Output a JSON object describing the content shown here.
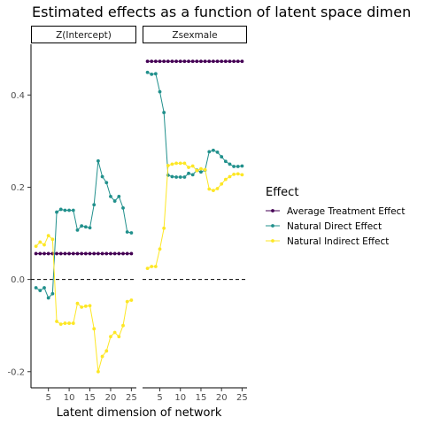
{
  "chart_data": {
    "type": "line",
    "title": "Estimated effects as a function of latent space dimen",
    "xlabel": "Latent dimension of network",
    "ylabel": "",
    "ylim": [
      -0.235,
      0.51
    ],
    "xlim": [
      0.8,
      26.2
    ],
    "yticks": [
      -0.2,
      0.0,
      0.2,
      0.4
    ],
    "ytick_labels": [
      "-0.2",
      "0.0",
      "0.2",
      "0.4"
    ],
    "xticks": [
      5,
      10,
      15,
      20,
      25
    ],
    "xtick_labels": [
      "5",
      "10",
      "15",
      "20",
      "25"
    ],
    "reference_line": 0,
    "grid": false,
    "legend": {
      "title": "Effect",
      "placement": "right",
      "entries": [
        "Average Treatment Effect",
        "Natural Direct Effect",
        "Natural Indirect Effect"
      ]
    },
    "colors": {
      "Average Treatment Effect": "#440154",
      "Natural Direct Effect": "#21908c",
      "Natural Indirect Effect": "#fde725"
    },
    "x": [
      2,
      3,
      4,
      5,
      6,
      7,
      8,
      9,
      10,
      11,
      12,
      13,
      14,
      15,
      16,
      17,
      18,
      19,
      20,
      21,
      22,
      23,
      24,
      25
    ],
    "panels": [
      {
        "strip": "Z(Intercept)",
        "series": [
          {
            "name": "Average Treatment Effect",
            "values": [
              0.056,
              0.056,
              0.056,
              0.056,
              0.056,
              0.056,
              0.056,
              0.056,
              0.056,
              0.056,
              0.056,
              0.056,
              0.056,
              0.056,
              0.056,
              0.056,
              0.056,
              0.056,
              0.056,
              0.056,
              0.056,
              0.056,
              0.056,
              0.056
            ]
          },
          {
            "name": "Natural Direct Effect",
            "values": [
              -0.018,
              -0.024,
              -0.018,
              -0.04,
              -0.031,
              0.146,
              0.152,
              0.15,
              0.15,
              0.15,
              0.107,
              0.116,
              0.114,
              0.112,
              0.162,
              0.257,
              0.223,
              0.21,
              0.18,
              0.17,
              0.18,
              0.155,
              0.103,
              0.101
            ]
          },
          {
            "name": "Natural Indirect Effect",
            "values": [
              0.072,
              0.081,
              0.075,
              0.095,
              0.087,
              -0.091,
              -0.097,
              -0.095,
              -0.095,
              -0.095,
              -0.052,
              -0.06,
              -0.058,
              -0.057,
              -0.107,
              -0.2,
              -0.167,
              -0.155,
              -0.124,
              -0.115,
              -0.124,
              -0.1,
              -0.048,
              -0.045
            ]
          }
        ]
      },
      {
        "strip": "Zsexmale",
        "series": [
          {
            "name": "Average Treatment Effect",
            "values": [
              0.473,
              0.473,
              0.473,
              0.473,
              0.473,
              0.473,
              0.473,
              0.473,
              0.473,
              0.473,
              0.473,
              0.473,
              0.473,
              0.473,
              0.473,
              0.473,
              0.473,
              0.473,
              0.473,
              0.473,
              0.473,
              0.473,
              0.473,
              0.473
            ]
          },
          {
            "name": "Natural Direct Effect",
            "values": [
              0.449,
              0.445,
              0.446,
              0.407,
              0.362,
              0.226,
              0.223,
              0.222,
              0.222,
              0.222,
              0.23,
              0.227,
              0.237,
              0.233,
              0.237,
              0.277,
              0.28,
              0.276,
              0.266,
              0.256,
              0.25,
              0.245,
              0.245,
              0.246
            ]
          },
          {
            "name": "Natural Indirect Effect",
            "values": [
              0.024,
              0.028,
              0.028,
              0.066,
              0.111,
              0.247,
              0.25,
              0.252,
              0.252,
              0.252,
              0.243,
              0.246,
              0.236,
              0.24,
              0.238,
              0.196,
              0.193,
              0.197,
              0.207,
              0.217,
              0.223,
              0.228,
              0.229,
              0.227
            ]
          }
        ]
      }
    ]
  }
}
